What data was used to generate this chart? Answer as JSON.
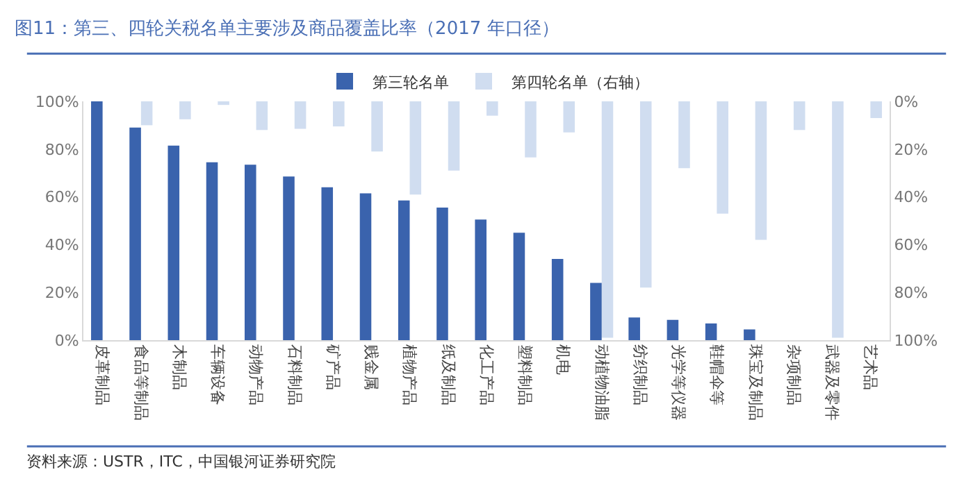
{
  "chart_data": {
    "type": "bar",
    "title": "图11：第三、四轮关税名单主要涉及商品覆盖比率（2017 年口径）",
    "categories": [
      "皮革制品",
      "食品等制品",
      "木制品",
      "车辆设备",
      "动物产品",
      "石料制品",
      "矿产品",
      "贱金属",
      "植物产品",
      "纸及制品",
      "化工产品",
      "塑料制品",
      "机电",
      "动植物油脂",
      "纺织制品",
      "光学等仪器",
      "鞋帽伞等",
      "珠宝及制品",
      "杂项制品",
      "武器及零件",
      "艺术品"
    ],
    "series": [
      {
        "name": "第三轮名单",
        "color": "#3a63ad",
        "values": [
          100,
          89,
          81.5,
          74.5,
          73.5,
          68.5,
          64,
          61.5,
          58.5,
          55.5,
          50.5,
          45,
          34,
          24,
          9.5,
          8.5,
          7,
          4.5,
          0,
          0,
          0
        ]
      },
      {
        "name": "第四轮名单（右轴）",
        "color": "#d0ddf0",
        "axis": "y2",
        "values": [
          0,
          10,
          7.5,
          1.5,
          12,
          11.5,
          10.5,
          21,
          39,
          29,
          6,
          23.5,
          13,
          99,
          78,
          28,
          47,
          58,
          12,
          99,
          7
        ]
      }
    ],
    "ylim": [
      0,
      100
    ],
    "yticks": [
      {
        "value": 0,
        "label": "0%"
      },
      {
        "value": 20,
        "label": "20%"
      },
      {
        "value": 40,
        "label": "40%"
      },
      {
        "value": 60,
        "label": "60%"
      },
      {
        "value": 80,
        "label": "80%"
      },
      {
        "value": 100,
        "label": "100%"
      }
    ],
    "y2lim": [
      100,
      0
    ],
    "y2ticks": [
      {
        "value": 0,
        "label": "0%"
      },
      {
        "value": 20,
        "label": "20%"
      },
      {
        "value": 40,
        "label": "40%"
      },
      {
        "value": 60,
        "label": "60%"
      },
      {
        "value": 80,
        "label": "80%"
      },
      {
        "value": 100,
        "label": "100%"
      }
    ],
    "legend": "top",
    "annotations": [
      "资料来源：USTR，ITC，中国银河证券研究院"
    ]
  }
}
